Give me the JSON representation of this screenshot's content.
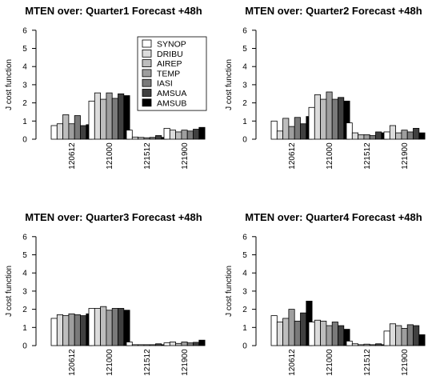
{
  "chart_data": [
    {
      "type": "bar",
      "title": "MTEN over: Quarter1 Forecast +48h",
      "ylabel": "J cost function",
      "ylim": [
        0,
        6
      ],
      "yticks": [
        0,
        1,
        2,
        3,
        4,
        5,
        6
      ],
      "categories": [
        "120612",
        "121000",
        "121512",
        "121900"
      ],
      "legend": "top-right",
      "series": [
        {
          "name": "SYNOP",
          "color": "#ffffff",
          "values": [
            0.75,
            2.1,
            0.5,
            0.6
          ]
        },
        {
          "name": "DRIBU",
          "color": "#dcdcdc",
          "values": [
            0.85,
            2.55,
            0.12,
            0.5
          ]
        },
        {
          "name": "AIREP",
          "color": "#bdbdbd",
          "values": [
            1.35,
            2.2,
            0.1,
            0.4
          ]
        },
        {
          "name": "TEMP",
          "color": "#9e9e9e",
          "values": [
            0.85,
            2.55,
            0.08,
            0.5
          ]
        },
        {
          "name": "IASI",
          "color": "#7a7a7a",
          "values": [
            1.3,
            2.25,
            0.1,
            0.45
          ]
        },
        {
          "name": "AMSUA",
          "color": "#404040",
          "values": [
            0.75,
            2.5,
            0.2,
            0.55
          ]
        },
        {
          "name": "AMSUB",
          "color": "#000000",
          "values": [
            0.8,
            2.4,
            0.1,
            0.65
          ]
        }
      ]
    },
    {
      "type": "bar",
      "title": "MTEN over: Quarter2 Forecast +48h",
      "ylabel": "J cost function",
      "ylim": [
        0,
        6
      ],
      "yticks": [
        0,
        1,
        2,
        3,
        4,
        5,
        6
      ],
      "categories": [
        "120612",
        "121000",
        "121512",
        "121900"
      ],
      "series": [
        {
          "name": "SYNOP",
          "color": "#ffffff",
          "values": [
            1.0,
            1.75,
            0.9,
            0.4
          ]
        },
        {
          "name": "DRIBU",
          "color": "#dcdcdc",
          "values": [
            0.45,
            2.45,
            0.35,
            0.75
          ]
        },
        {
          "name": "AIREP",
          "color": "#bdbdbd",
          "values": [
            1.15,
            2.2,
            0.25,
            0.35
          ]
        },
        {
          "name": "TEMP",
          "color": "#9e9e9e",
          "values": [
            0.7,
            2.6,
            0.25,
            0.5
          ]
        },
        {
          "name": "IASI",
          "color": "#7a7a7a",
          "values": [
            1.2,
            2.2,
            0.2,
            0.4
          ]
        },
        {
          "name": "AMSUA",
          "color": "#404040",
          "values": [
            0.85,
            2.3,
            0.4,
            0.6
          ]
        },
        {
          "name": "AMSUB",
          "color": "#000000",
          "values": [
            1.25,
            2.1,
            0.35,
            0.35
          ]
        }
      ]
    },
    {
      "type": "bar",
      "title": "MTEN over: Quarter3 Forecast +48h",
      "ylabel": "J cost function",
      "ylim": [
        0,
        6
      ],
      "yticks": [
        0,
        1,
        2,
        3,
        4,
        5,
        6
      ],
      "categories": [
        "120612",
        "121000",
        "121512",
        "121900"
      ],
      "series": [
        {
          "name": "SYNOP",
          "color": "#ffffff",
          "values": [
            1.5,
            2.05,
            0.2,
            0.15
          ]
        },
        {
          "name": "DRIBU",
          "color": "#dcdcdc",
          "values": [
            1.7,
            2.05,
            0.05,
            0.2
          ]
        },
        {
          "name": "AIREP",
          "color": "#bdbdbd",
          "values": [
            1.65,
            2.15,
            0.05,
            0.12
          ]
        },
        {
          "name": "TEMP",
          "color": "#9e9e9e",
          "values": [
            1.75,
            1.95,
            0.05,
            0.2
          ]
        },
        {
          "name": "IASI",
          "color": "#7a7a7a",
          "values": [
            1.7,
            2.05,
            0.05,
            0.15
          ]
        },
        {
          "name": "AMSUA",
          "color": "#404040",
          "values": [
            1.65,
            2.05,
            0.1,
            0.18
          ]
        },
        {
          "name": "AMSUB",
          "color": "#000000",
          "values": [
            1.75,
            1.95,
            0.05,
            0.3
          ]
        }
      ]
    },
    {
      "type": "bar",
      "title": "MTEN over: Quarter4 Forecast +48h",
      "ylabel": "J cost function",
      "ylim": [
        0,
        6
      ],
      "yticks": [
        0,
        1,
        2,
        3,
        4,
        5,
        6
      ],
      "categories": [
        "120612",
        "121000",
        "121512",
        "121900"
      ],
      "series": [
        {
          "name": "SYNOP",
          "color": "#ffffff",
          "values": [
            1.65,
            1.3,
            0.25,
            0.8
          ]
        },
        {
          "name": "DRIBU",
          "color": "#dcdcdc",
          "values": [
            1.3,
            1.4,
            0.1,
            1.2
          ]
        },
        {
          "name": "AIREP",
          "color": "#bdbdbd",
          "values": [
            1.5,
            1.35,
            0.05,
            1.1
          ]
        },
        {
          "name": "TEMP",
          "color": "#9e9e9e",
          "values": [
            2.0,
            1.1,
            0.08,
            0.95
          ]
        },
        {
          "name": "IASI",
          "color": "#7a7a7a",
          "values": [
            1.35,
            1.3,
            0.05,
            1.15
          ]
        },
        {
          "name": "AMSUA",
          "color": "#404040",
          "values": [
            1.8,
            1.1,
            0.1,
            1.1
          ]
        },
        {
          "name": "AMSUB",
          "color": "#000000",
          "values": [
            2.45,
            0.9,
            0.05,
            0.6
          ]
        }
      ]
    }
  ]
}
